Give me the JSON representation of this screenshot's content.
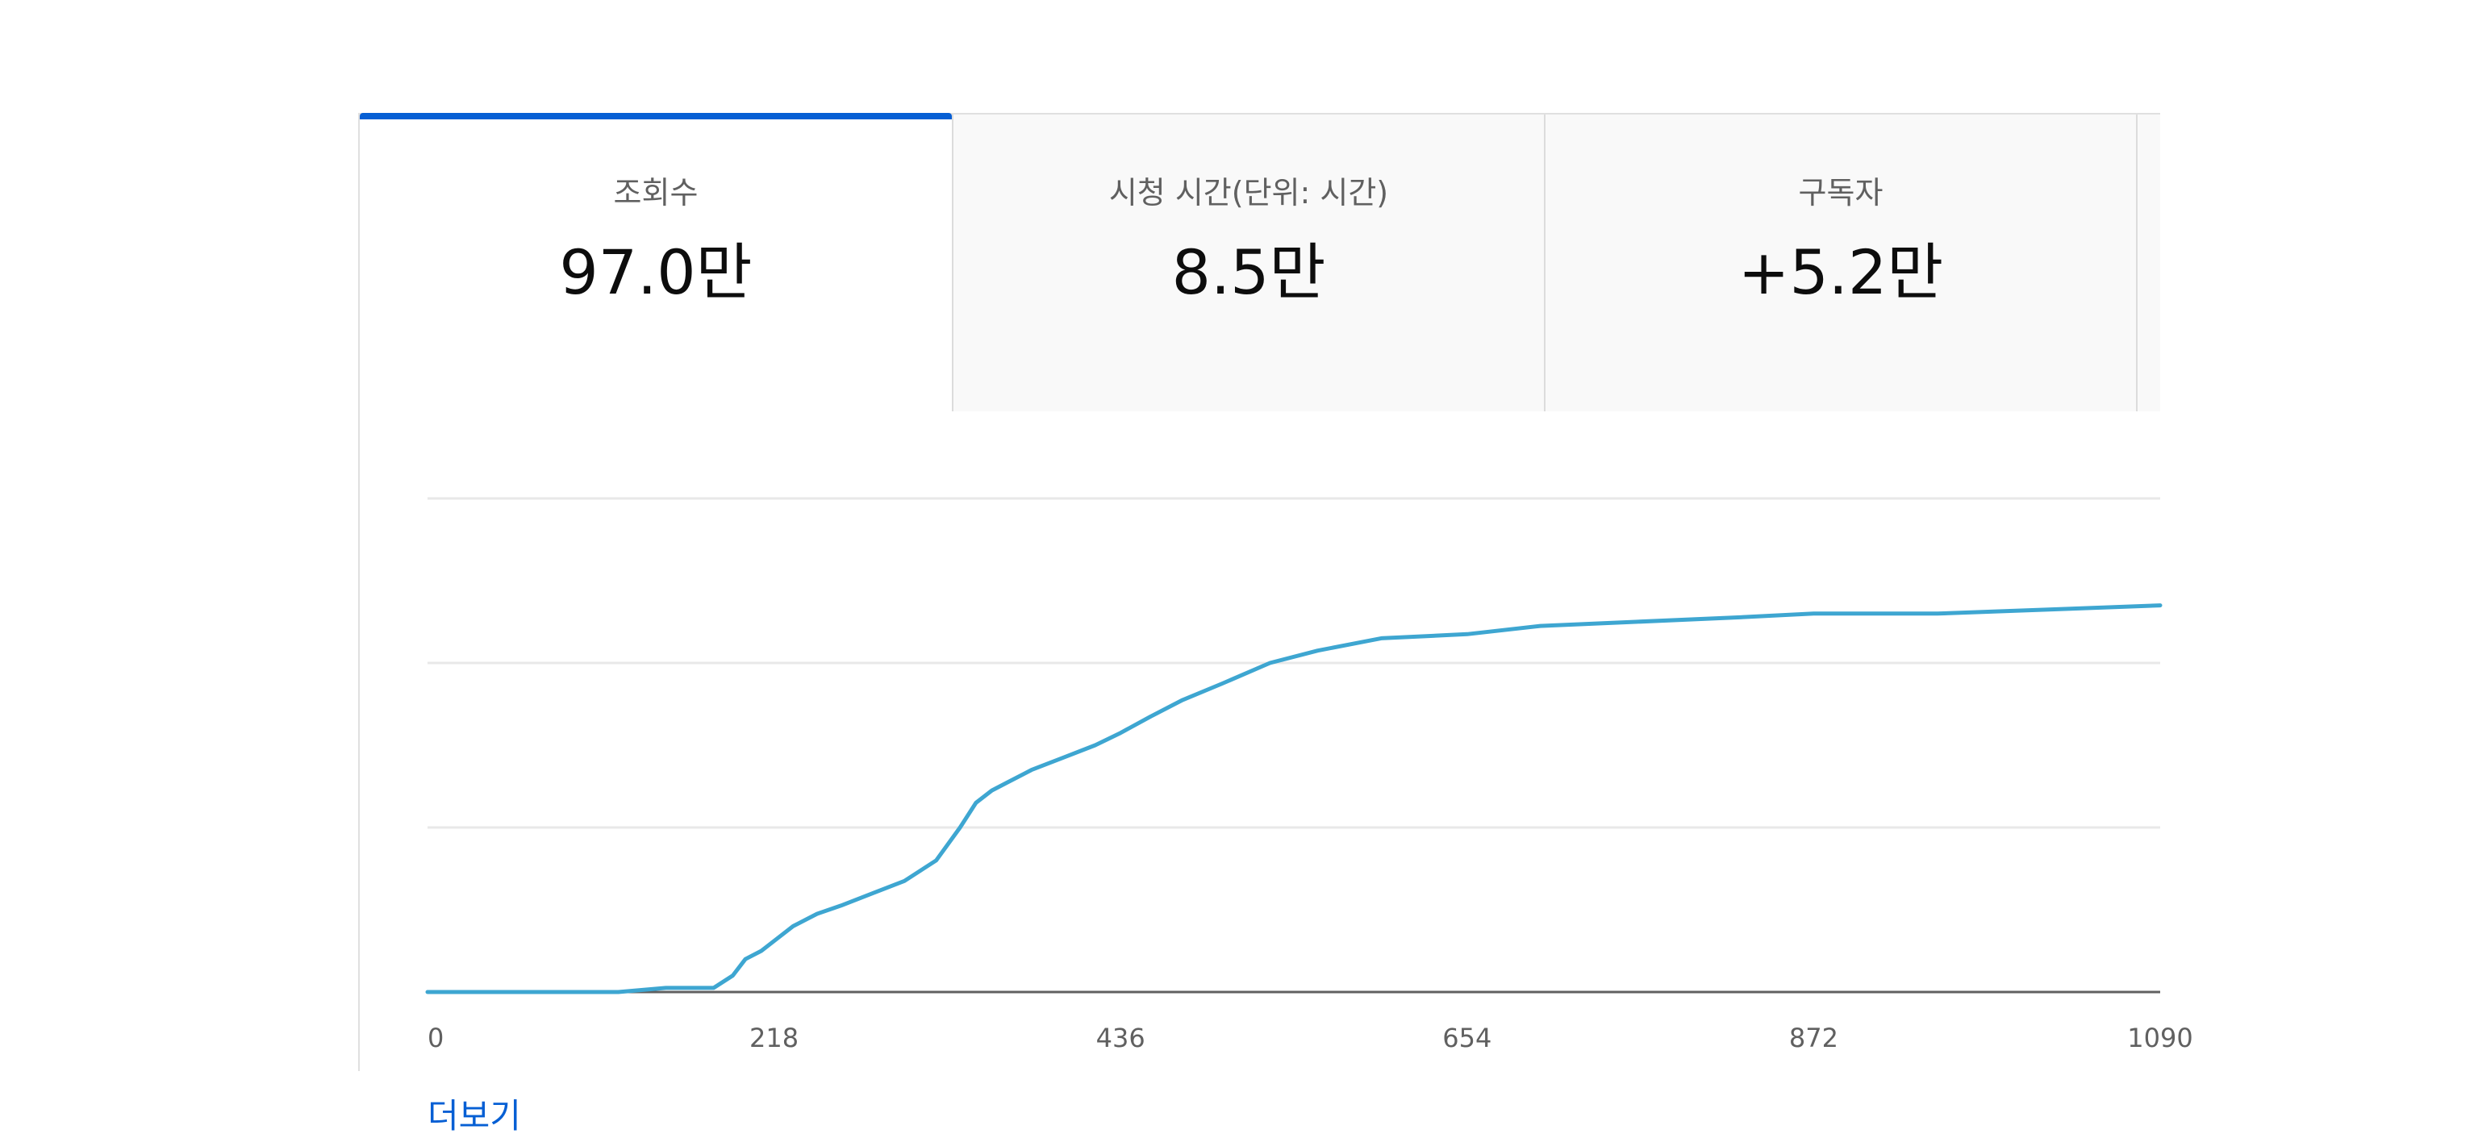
{
  "tabs": [
    {
      "label": "조회수",
      "value": "97.0만",
      "active": true
    },
    {
      "label": "시청 시간(단위: 시간)",
      "value": "8.5만",
      "active": false
    },
    {
      "label": "구독자",
      "value": "+5.2만",
      "active": false
    }
  ],
  "more_link": "더보기",
  "colors": {
    "accent": "#065fd4",
    "line": "#3ea6d1",
    "gridline": "#e8e8e8",
    "axis": "#606060"
  },
  "chart_data": {
    "type": "line",
    "title": "",
    "xlabel": "",
    "ylabel": "",
    "x_ticks": [
      "0",
      "218",
      "436",
      "654",
      "872",
      "1090"
    ],
    "xlim": [
      0,
      1090
    ],
    "ylim": [
      0,
      1.2
    ],
    "grid": true,
    "series": [
      {
        "x": [
          0,
          60,
          120,
          150,
          180,
          192,
          200,
          210,
          220,
          230,
          245,
          260,
          280,
          300,
          320,
          335,
          345,
          355,
          365,
          380,
          400,
          420,
          436,
          455,
          475,
          500,
          530,
          560,
          600,
          654,
          700,
          760,
          820,
          872,
          950,
          1020,
          1090
        ],
        "y": [
          0,
          0,
          0,
          0.01,
          0.01,
          0.04,
          0.08,
          0.1,
          0.13,
          0.16,
          0.19,
          0.21,
          0.24,
          0.27,
          0.32,
          0.4,
          0.46,
          0.49,
          0.51,
          0.54,
          0.57,
          0.6,
          0.63,
          0.67,
          0.71,
          0.75,
          0.8,
          0.83,
          0.86,
          0.87,
          0.89,
          0.9,
          0.91,
          0.92,
          0.92,
          0.93,
          0.94
        ]
      }
    ]
  }
}
